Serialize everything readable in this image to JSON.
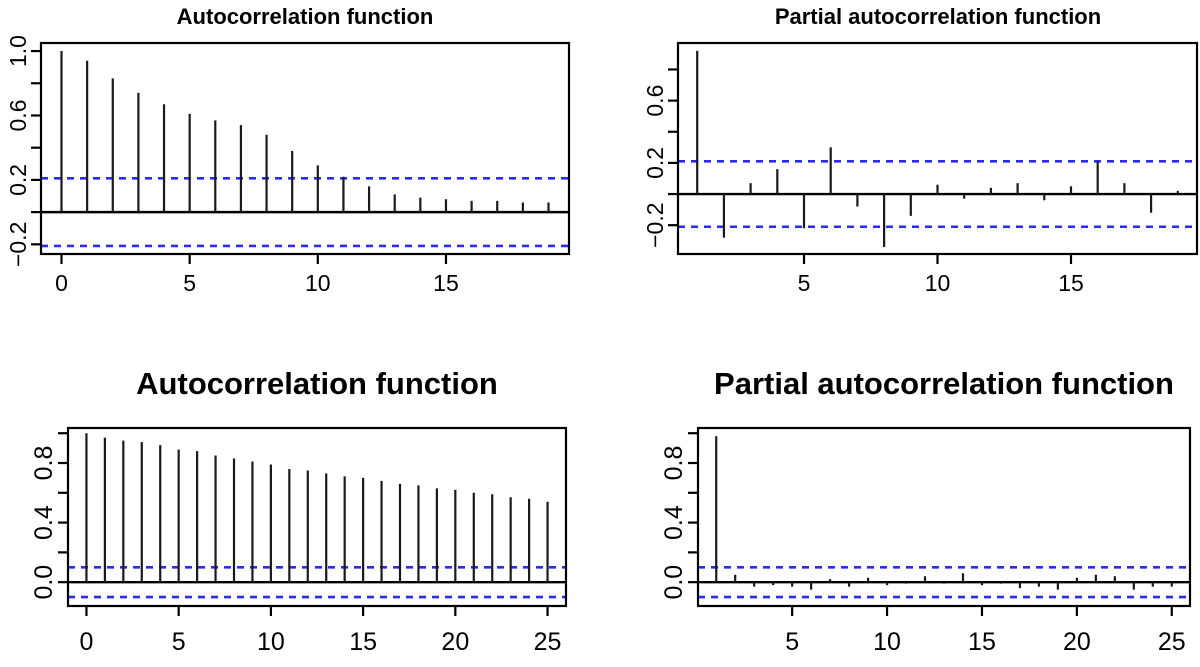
{
  "figure": {
    "background": "#ffffff",
    "bar_color": "#1a1a1a",
    "axis_color": "#000000",
    "conf_line_color": "#2b2bf0",
    "text_color": "#000000"
  },
  "chart_data": [
    {
      "id": "acf-top",
      "type": "stem",
      "title": "Autocorrelation function",
      "xlabel": "",
      "ylabel": "",
      "legend": "none",
      "grid": false,
      "lags": [
        0,
        1,
        2,
        3,
        4,
        5,
        6,
        7,
        8,
        9,
        10,
        11,
        12,
        13,
        14,
        15,
        16,
        17,
        18,
        19
      ],
      "values": [
        1.0,
        0.94,
        0.83,
        0.74,
        0.67,
        0.61,
        0.57,
        0.54,
        0.48,
        0.38,
        0.29,
        0.22,
        0.16,
        0.11,
        0.09,
        0.08,
        0.07,
        0.07,
        0.06,
        0.06
      ],
      "conf_bounds": [
        0.21,
        -0.21
      ],
      "xlim": [
        -0.8,
        19.8
      ],
      "ylim": [
        -0.26,
        1.05
      ],
      "xticks": [
        0,
        5,
        10,
        15
      ],
      "xtick_labels": [
        "0",
        "5",
        "10",
        "15"
      ],
      "ytick_values": [
        -0.2,
        0,
        0.2,
        0.4,
        0.6,
        0.8,
        1.0
      ],
      "ytick_labels": [
        "−0.2",
        "",
        "0.2",
        "",
        "0.6",
        "",
        "1.0"
      ]
    },
    {
      "id": "pacf-top",
      "type": "stem",
      "title": "Partial autocorrelation function",
      "xlabel": "",
      "ylabel": "",
      "legend": "none",
      "grid": false,
      "lags": [
        1,
        2,
        3,
        4,
        5,
        6,
        7,
        8,
        9,
        10,
        11,
        12,
        13,
        14,
        15,
        16,
        17,
        18,
        19
      ],
      "values": [
        0.92,
        -0.28,
        0.07,
        0.16,
        -0.22,
        0.3,
        -0.08,
        -0.34,
        -0.14,
        0.06,
        -0.03,
        0.04,
        0.07,
        -0.04,
        0.05,
        0.21,
        0.07,
        -0.12,
        0.02
      ],
      "conf_bounds": [
        0.21,
        -0.21
      ],
      "xlim": [
        0.28,
        19.72
      ],
      "ylim": [
        -0.385,
        0.97
      ],
      "xticks": [
        5,
        10,
        15
      ],
      "xtick_labels": [
        "5",
        "10",
        "15"
      ],
      "ytick_values": [
        -0.2,
        0,
        0.2,
        0.4,
        0.6,
        0.8
      ],
      "ytick_labels": [
        "−0.2",
        "",
        "0.2",
        "",
        "0.6",
        ""
      ]
    },
    {
      "id": "acf-bottom",
      "type": "stem",
      "title": "Autocorrelation function",
      "xlabel": "",
      "ylabel": "",
      "legend": "none",
      "grid": false,
      "lags": [
        0,
        1,
        2,
        3,
        4,
        5,
        6,
        7,
        8,
        9,
        10,
        11,
        12,
        13,
        14,
        15,
        16,
        17,
        18,
        19,
        20,
        21,
        22,
        23,
        24,
        25
      ],
      "values": [
        1.0,
        0.97,
        0.95,
        0.94,
        0.92,
        0.89,
        0.88,
        0.85,
        0.83,
        0.81,
        0.79,
        0.76,
        0.75,
        0.73,
        0.71,
        0.7,
        0.68,
        0.66,
        0.65,
        0.63,
        0.62,
        0.6,
        0.59,
        0.57,
        0.56,
        0.54
      ],
      "conf_bounds": [
        0.1,
        -0.1
      ],
      "xlim": [
        -1.0,
        26.0
      ],
      "ylim": [
        -0.16,
        1.035
      ],
      "xticks": [
        0,
        5,
        10,
        15,
        20,
        25
      ],
      "xtick_labels": [
        "0",
        "5",
        "10",
        "15",
        "20",
        "25"
      ],
      "ytick_values": [
        0,
        0.2,
        0.4,
        0.6,
        0.8,
        1.0
      ],
      "ytick_labels": [
        "0.0",
        "",
        "0.4",
        "",
        "0.8",
        ""
      ]
    },
    {
      "id": "pacf-bottom",
      "type": "stem",
      "title": "Partial autocorrelation function",
      "xlabel": "",
      "ylabel": "",
      "legend": "none",
      "grid": false,
      "lags": [
        1,
        2,
        3,
        4,
        5,
        6,
        7,
        8,
        9,
        10,
        11,
        12,
        13,
        14,
        15,
        16,
        17,
        18,
        19,
        20,
        21,
        22,
        23,
        24,
        25
      ],
      "values": [
        0.98,
        0.05,
        -0.03,
        -0.02,
        -0.03,
        -0.05,
        0.02,
        -0.03,
        0.03,
        -0.02,
        -0.01,
        0.04,
        -0.01,
        0.06,
        -0.02,
        -0.01,
        -0.04,
        -0.03,
        -0.05,
        0.03,
        0.05,
        0.04,
        -0.05,
        -0.03,
        -0.03
      ],
      "conf_bounds": [
        0.1,
        -0.1
      ],
      "xlim": [
        0.04,
        25.96
      ],
      "ylim": [
        -0.16,
        1.035
      ],
      "xticks": [
        5,
        10,
        15,
        20,
        25
      ],
      "xtick_labels": [
        "5",
        "10",
        "15",
        "20",
        "25"
      ],
      "ytick_values": [
        0,
        0.2,
        0.4,
        0.6,
        0.8,
        1.0
      ],
      "ytick_labels": [
        "0.0",
        "",
        "0.4",
        "",
        "0.8",
        ""
      ]
    }
  ]
}
